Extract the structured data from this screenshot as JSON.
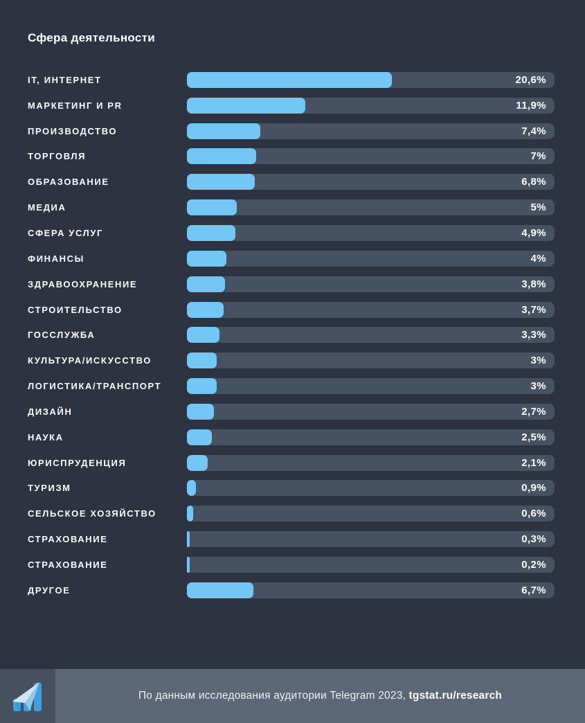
{
  "title": "Сфера деятельности",
  "chart_data": {
    "type": "bar",
    "orientation": "horizontal",
    "title": "Сфера деятельности",
    "unit": "%",
    "xlim": [
      0,
      37
    ],
    "grid": false,
    "legend": false,
    "categories": [
      "IT, ИНТЕРНЕТ",
      "МАРКЕТИНГ И PR",
      "ПРОИЗВОДСТВО",
      "ТОРГОВЛЯ",
      "ОБРАЗОВАНИЕ",
      "МЕДИА",
      "СФЕРА УСЛУГ",
      "ФИНАНСЫ",
      "ЗДРАВООХРАНЕНИЕ",
      "СТРОИТЕЛЬСТВО",
      "ГОССЛУЖБА",
      "КУЛЬТУРА/ИСКУССТВО",
      "ЛОГИСТИКА/ТРАНСПОРТ",
      "ДИЗАЙН",
      "НАУКА",
      "ЮРИСПРУДЕНЦИЯ",
      "ТУРИЗМ",
      "СЕЛЬСКОЕ ХОЗЯЙСТВО",
      "СТРАХОВАНИЕ",
      "СТРАХОВАНИЕ",
      "ДРУГОЕ"
    ],
    "values": [
      20.6,
      11.9,
      7.4,
      7,
      6.8,
      5,
      4.9,
      4,
      3.8,
      3.7,
      3.3,
      3,
      3,
      2.7,
      2.5,
      2.1,
      0.9,
      0.6,
      0.3,
      0.2,
      6.7
    ],
    "value_labels": [
      "20,6%",
      "11,9%",
      "7,4%",
      "7%",
      "6,8%",
      "5%",
      "4,9%",
      "4%",
      "3,8%",
      "3,7%",
      "3,3%",
      "3%",
      "3%",
      "2,7%",
      "2,5%",
      "2,1%",
      "0,9%",
      "0,6%",
      "0,3%",
      "0,2%",
      "6,7%"
    ]
  },
  "colors": {
    "background": "#2d3341",
    "track": "#465262",
    "bar": "#74c6f5",
    "text": "#ffffff",
    "footer_band": "#5b6676",
    "logo_tile": "#46505f",
    "logo_blue": "#3aa0e0",
    "logo_light": "#cfe6f6",
    "logo_mid": "#96c6ea"
  },
  "footer": {
    "text_regular": "По данным исследования аудитории Telegram 2023, ",
    "text_bold": "tgstat.ru/research",
    "logo": "tgstat-logo"
  }
}
